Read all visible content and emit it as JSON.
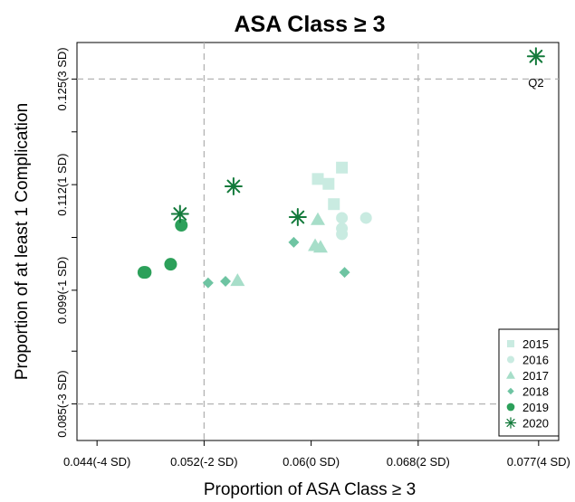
{
  "chart_data": {
    "type": "scatter",
    "title": "ASA Class ≥ 3",
    "xlabel": "Proportion of ASA Class ≥ 3",
    "ylabel": "Proportion of at least 1 Complication",
    "xlim": [
      0.0425,
      0.0785
    ],
    "ylim": [
      0.0805,
      0.1295
    ],
    "x_ticks": [
      {
        "value": 0.044,
        "label": "0.044(-4 SD)"
      },
      {
        "value": 0.052,
        "label": "0.052(-2 SD)"
      },
      {
        "value": 0.06,
        "label": "0.06(0 SD)"
      },
      {
        "value": 0.068,
        "label": "0.068(2 SD)"
      },
      {
        "value": 0.077,
        "label": "0.077(4 SD)"
      }
    ],
    "y_ticks": [
      {
        "value": 0.085,
        "label": "0.085(-3 SD)"
      },
      {
        "value": 0.099,
        "label": "0.099(-1 SD)"
      },
      {
        "value": 0.112,
        "label": "0.112(1 SD)"
      },
      {
        "value": 0.125,
        "label": "0.125(3 SD)"
      }
    ],
    "y_minor_ticks": [
      0.0915,
      0.1055,
      0.1185
    ],
    "reference_lines": {
      "x": [
        0.052,
        0.068
      ],
      "y": [
        0.085,
        0.125
      ]
    },
    "grid": false,
    "legend_position": "bottom-right",
    "annotations": [
      {
        "text": "Q2",
        "x": 0.0768,
        "y": 0.1245
      }
    ],
    "series": [
      {
        "name": "2015",
        "marker": "square",
        "color": "#c9ebe1",
        "points": [
          [
            0.0605,
            0.1127
          ],
          [
            0.0613,
            0.1121
          ],
          [
            0.0623,
            0.1141
          ],
          [
            0.0617,
            0.1096
          ]
        ]
      },
      {
        "name": "2016",
        "marker": "circle",
        "color": "#c9ebe1",
        "points": [
          [
            0.0623,
            0.1079
          ],
          [
            0.0641,
            0.1079
          ],
          [
            0.0623,
            0.1066
          ],
          [
            0.0623,
            0.1059
          ]
        ]
      },
      {
        "name": "2017",
        "marker": "triangle",
        "color": "#a7dec9",
        "points": [
          [
            0.0605,
            0.1077
          ],
          [
            0.0603,
            0.1045
          ],
          [
            0.0607,
            0.1043
          ],
          [
            0.0545,
            0.1002
          ]
        ]
      },
      {
        "name": "2018",
        "marker": "diamond",
        "color": "#6ec4a2",
        "points": [
          [
            0.0587,
            0.1049
          ],
          [
            0.0625,
            0.1012
          ],
          [
            0.0523,
            0.0999
          ],
          [
            0.0536,
            0.1001
          ]
        ]
      },
      {
        "name": "2019",
        "marker": "filled-circle",
        "color": "#2ca05a",
        "points": [
          [
            0.0503,
            0.107
          ],
          [
            0.0495,
            0.1022
          ],
          [
            0.0475,
            0.1012
          ],
          [
            0.0476,
            0.1012
          ]
        ]
      },
      {
        "name": "2020",
        "marker": "asterisk",
        "color": "#137a3b",
        "points": [
          [
            0.0542,
            0.1118
          ],
          [
            0.0502,
            0.1084
          ],
          [
            0.059,
            0.108
          ],
          [
            0.0768,
            0.1278
          ]
        ]
      }
    ]
  }
}
